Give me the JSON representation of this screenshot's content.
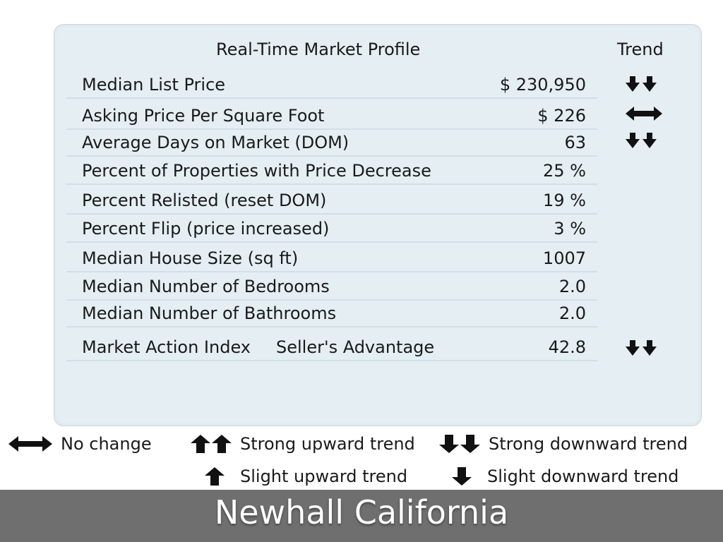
{
  "header": {
    "title": "Real-Time Market Profile",
    "trend": "Trend"
  },
  "rows": [
    {
      "label": "Median List Price",
      "sublabel": "",
      "value": "$ 230,950",
      "trend": "strong-down"
    },
    {
      "label": "Asking Price Per Square Foot",
      "sublabel": "",
      "value": "$ 226",
      "trend": "no-change"
    },
    {
      "label": "Average Days on Market (DOM)",
      "sublabel": "",
      "value": "63",
      "trend": "strong-down"
    },
    {
      "label": "Percent of Properties with Price Decrease",
      "sublabel": "",
      "value": "25 %",
      "trend": ""
    },
    {
      "label": "Percent Relisted (reset DOM)",
      "sublabel": "",
      "value": "19 %",
      "trend": ""
    },
    {
      "label": "Percent Flip (price increased)",
      "sublabel": "",
      "value": "3 %",
      "trend": ""
    },
    {
      "label": "Median House Size (sq ft)",
      "sublabel": "",
      "value": "1007",
      "trend": ""
    },
    {
      "label": "Median Number of Bedrooms",
      "sublabel": "",
      "value": "2.0",
      "trend": ""
    },
    {
      "label": "Median Number of Bathrooms",
      "sublabel": "",
      "value": "2.0",
      "trend": ""
    },
    {
      "label": "Market Action Index",
      "sublabel": "Seller's Advantage",
      "value": "42.8",
      "trend": "strong-down"
    }
  ],
  "legend": {
    "no_change": "No change",
    "strong_up": "Strong upward trend",
    "strong_down": "Strong downward trend",
    "slight_up": "Slight upward trend",
    "slight_down": "Slight downward trend"
  },
  "footer": {
    "title": "Newhall California"
  },
  "colors": {
    "panel": "#e4eef3",
    "banner": "#6f6f6f",
    "icon": "#111111"
  }
}
